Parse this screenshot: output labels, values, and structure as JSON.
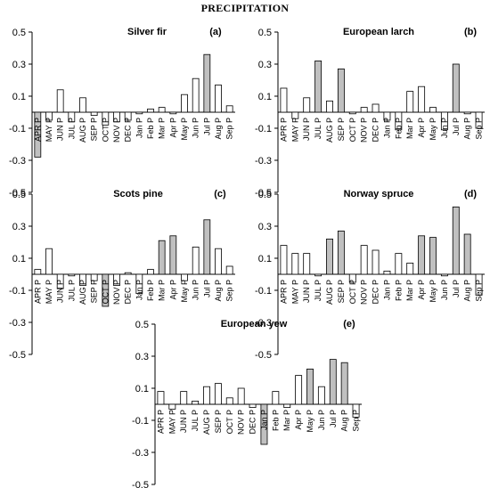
{
  "title": "PRECIPITATION",
  "chart_data": [
    {
      "type": "bar",
      "title": "Silver fir",
      "letter": "(a)",
      "ylim": [
        -0.5,
        0.5
      ],
      "yticks": [
        "0.5",
        "0.3",
        "0.1",
        "-0.1",
        "-0.3",
        "-0.5"
      ],
      "categories": [
        "APR P",
        "MAY P",
        "JUN P",
        "JUL P",
        "AUG P",
        "SEP P",
        "OCT P",
        "NOV P",
        "DEC P",
        "Jan P",
        "Feb P",
        "Mar P",
        "Apr P",
        "May P",
        "Jun P",
        "Jul P",
        "Aug P",
        "Sep P"
      ],
      "values": [
        -0.28,
        -0.05,
        0.14,
        -0.06,
        0.09,
        -0.02,
        -0.08,
        -0.06,
        -0.05,
        -0.01,
        0.02,
        0.03,
        -0.01,
        0.11,
        0.21,
        0.36,
        0.17,
        0.04
      ],
      "significant": [
        true,
        false,
        false,
        false,
        false,
        false,
        false,
        false,
        false,
        false,
        false,
        false,
        false,
        false,
        false,
        true,
        false,
        false
      ]
    },
    {
      "type": "bar",
      "title": "European larch",
      "letter": "(b)",
      "ylim": [
        -0.5,
        0.5
      ],
      "yticks": [
        "0.5",
        "0.3",
        "0.1",
        "-0.1",
        "-0.3",
        "-0.5"
      ],
      "categories": [
        "APR P",
        "MAY P",
        "JUN P",
        "JUL P",
        "AUG P",
        "SEP P",
        "OCT P",
        "NOV P",
        "DEC P",
        "Jan P",
        "Feb P",
        "Mar P",
        "Apr P",
        "May P",
        "Jun P",
        "Jul P",
        "Aug P",
        "Sep P"
      ],
      "values": [
        0.15,
        -0.04,
        0.09,
        0.32,
        0.07,
        0.27,
        -0.01,
        0.03,
        0.05,
        -0.05,
        -0.11,
        0.13,
        0.16,
        0.03,
        -0.11,
        0.3,
        -0.01,
        -0.1
      ],
      "significant": [
        false,
        false,
        false,
        true,
        false,
        true,
        false,
        false,
        false,
        false,
        false,
        false,
        false,
        false,
        false,
        true,
        false,
        false
      ]
    },
    {
      "type": "bar",
      "title": "Scots pine",
      "letter": "(c)",
      "ylim": [
        -0.5,
        0.5
      ],
      "yticks": [
        "0.5",
        "0.3",
        "0.1",
        "-0.1",
        "-0.3",
        "-0.5"
      ],
      "categories": [
        "APR P",
        "MAY P",
        "JUN P",
        "JUL P",
        "AUG P",
        "SEP P",
        "OCT P",
        "NOV P",
        "DEC P",
        "Jan P",
        "Feb P",
        "Mar P",
        "Apr P",
        "May P",
        "Jun P",
        "Jul P",
        "Aug P",
        "Sep P"
      ],
      "values": [
        0.03,
        0.16,
        -0.09,
        -0.01,
        -0.07,
        -0.04,
        -0.2,
        -0.07,
        0.01,
        -0.12,
        0.03,
        0.21,
        0.24,
        -0.04,
        0.17,
        0.34,
        0.16,
        0.05
      ],
      "significant": [
        false,
        false,
        false,
        false,
        false,
        false,
        true,
        false,
        false,
        false,
        false,
        true,
        true,
        false,
        false,
        true,
        false,
        false
      ]
    },
    {
      "type": "bar",
      "title": "Norway spruce",
      "letter": "(d)",
      "ylim": [
        -0.5,
        0.5
      ],
      "yticks": [
        "0.5",
        "0.3",
        "0.1",
        "-0.1",
        "-0.3",
        "-0.5"
      ],
      "categories": [
        "APR P",
        "MAY P",
        "JUN P",
        "JUL P",
        "AUG P",
        "SEP P",
        "OCT P",
        "NOV P",
        "DEC P",
        "Jan P",
        "Feb P",
        "Mar P",
        "Apr P",
        "May P",
        "Jun P",
        "Jul P",
        "Aug P",
        "Sep P"
      ],
      "values": [
        0.18,
        0.13,
        0.13,
        -0.01,
        0.22,
        0.27,
        -0.05,
        0.18,
        0.15,
        0.02,
        0.13,
        0.07,
        0.24,
        0.23,
        -0.01,
        0.42,
        0.25,
        -0.13
      ],
      "significant": [
        false,
        false,
        false,
        false,
        true,
        true,
        false,
        false,
        false,
        false,
        false,
        false,
        true,
        true,
        false,
        true,
        true,
        false
      ]
    },
    {
      "type": "bar",
      "title": "European yew",
      "letter": "(e)",
      "ylim": [
        -0.5,
        0.5
      ],
      "yticks": [
        "0.5",
        "0.3",
        "0.1",
        "-0.1",
        "-0.3",
        "-0.5"
      ],
      "categories": [
        "APR P",
        "MAY P",
        "JUN P",
        "JUL P",
        "AUG P",
        "SEP P",
        "OCT P",
        "NOV P",
        "DEC P",
        "Jan P",
        "Feb P",
        "Mar P",
        "Apr P",
        "May P",
        "Jun P",
        "Jul P",
        "Aug P",
        "Sep P"
      ],
      "values": [
        0.08,
        -0.03,
        0.08,
        0.02,
        0.11,
        0.13,
        0.04,
        0.1,
        -0.02,
        -0.25,
        0.08,
        -0.02,
        0.18,
        0.22,
        0.11,
        0.28,
        0.26,
        -0.08
      ],
      "significant": [
        false,
        false,
        false,
        false,
        false,
        false,
        false,
        false,
        false,
        true,
        false,
        false,
        false,
        true,
        false,
        true,
        true,
        false
      ]
    }
  ],
  "colors": {
    "significant": "#c0c0c0",
    "normal": "#ffffff",
    "stroke": "#000000",
    "axis": "#000000"
  }
}
